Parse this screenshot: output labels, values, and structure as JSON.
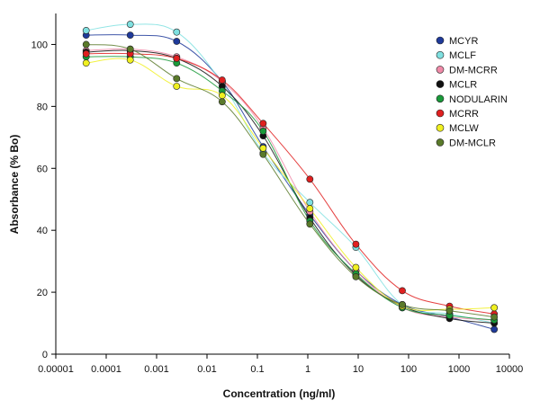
{
  "chart_data": {
    "type": "scatter",
    "xlabel": "Concentration (ng/ml)",
    "ylabel": "Absorbance (% Bo)",
    "x_scale": "log",
    "xlim": [
      1e-05,
      10000
    ],
    "ylim": [
      0,
      110
    ],
    "x_ticks": [
      "0.00001",
      "0.0001",
      "0.001",
      "0.01",
      "0.1",
      "1",
      "10",
      "100",
      "1000",
      "10000"
    ],
    "y_ticks": [
      "0",
      "20",
      "40",
      "60",
      "80",
      "100"
    ],
    "grid": false,
    "legend_position": "top-right",
    "x": [
      4e-05,
      0.0003,
      0.0025,
      0.02,
      0.13,
      1.1,
      9,
      75,
      650,
      5000
    ],
    "series": [
      {
        "name": "MCYR",
        "color": "#1f3a9a",
        "values": [
          103,
          103,
          101,
          88,
          67,
          45,
          27,
          16,
          12,
          8
        ]
      },
      {
        "name": "MCLF",
        "color": "#7fe0e0",
        "values": [
          104.5,
          106.5,
          104,
          87.5,
          65,
          49,
          34.5,
          16,
          13,
          10
        ]
      },
      {
        "name": "DM-MCRR",
        "color": "#f08aa8",
        "values": [
          98,
          98.5,
          96,
          88,
          73,
          46,
          27,
          15,
          12,
          11
        ]
      },
      {
        "name": "MCLR",
        "color": "#111111",
        "values": [
          97.5,
          98,
          95.5,
          86.5,
          70.5,
          44,
          25.5,
          15.5,
          11.5,
          10
        ]
      },
      {
        "name": "NODULARIN",
        "color": "#1a9a3a",
        "values": [
          96,
          96,
          94,
          85,
          72,
          43,
          26,
          15,
          12.5,
          11
        ]
      },
      {
        "name": "MCRR",
        "color": "#e02020",
        "values": [
          97,
          97,
          95.5,
          88.5,
          74.5,
          56.5,
          35.5,
          20.5,
          15.5,
          13
        ]
      },
      {
        "name": "MCLW",
        "color": "#f0f020",
        "values": [
          94,
          95,
          86.5,
          83.5,
          66.5,
          47,
          28,
          15.5,
          14.5,
          15
        ]
      },
      {
        "name": "DM-MCLR",
        "color": "#5a7a2a",
        "values": [
          100,
          98.5,
          89,
          81.5,
          64.5,
          42,
          25,
          16,
          14,
          12
        ]
      }
    ]
  }
}
